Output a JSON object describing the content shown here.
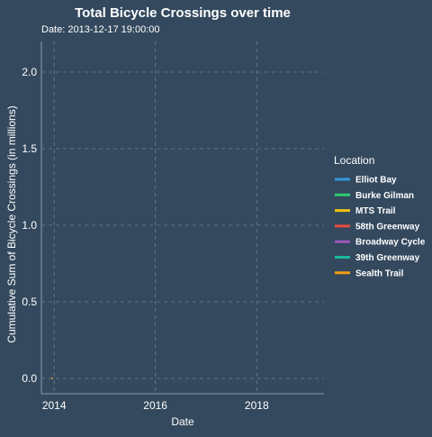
{
  "chart_data": {
    "type": "line",
    "title": "Total Bicycle Crossings over time",
    "subtitle": "Date: 2013-12-17 19:00:00",
    "xlabel": "Date",
    "ylabel": "Cumulative Sum of Bicycle Crossings (in millions)",
    "x_ticks": [
      "2014",
      "2016",
      "2018"
    ],
    "x_tick_values": [
      "2014-01-01",
      "2016-01-01",
      "2018-01-01"
    ],
    "xlim": [
      "2013-10-01",
      "2019-05-01"
    ],
    "y_ticks": [
      "0.0",
      "0.5",
      "1.0",
      "1.5",
      "2.0"
    ],
    "y_tick_values": [
      0,
      0.5,
      1.0,
      1.5,
      2.0
    ],
    "ylim": [
      -0.1,
      2.2
    ],
    "grid": true,
    "legend": {
      "title": "Location",
      "placement": "right"
    },
    "series": [
      {
        "name": "Elliot Bay",
        "color": "#3498db",
        "x": [
          "2013-12-17"
        ],
        "values": [
          0.0
        ]
      },
      {
        "name": "Burke Gilman",
        "color": "#2ecc71",
        "x": [
          "2013-12-17"
        ],
        "values": [
          0.0
        ]
      },
      {
        "name": "MTS Trail",
        "color": "#f1c40f",
        "x": [
          "2013-12-17"
        ],
        "values": [
          0.0
        ]
      },
      {
        "name": "58th Greenway",
        "color": "#e74c3c",
        "x": [
          "2013-12-17"
        ],
        "values": [
          0.0
        ]
      },
      {
        "name": "Broadway Cycle",
        "color": "#9b59b6",
        "x": [
          "2013-12-17"
        ],
        "values": [
          0.0
        ]
      },
      {
        "name": "39th Greenway",
        "color": "#1abc9c",
        "x": [
          "2013-12-17"
        ],
        "values": [
          0.0
        ]
      },
      {
        "name": "Sealth Trail",
        "color": "#f39c12",
        "x": [
          "2013-12-17"
        ],
        "values": [
          0.0
        ]
      }
    ]
  }
}
